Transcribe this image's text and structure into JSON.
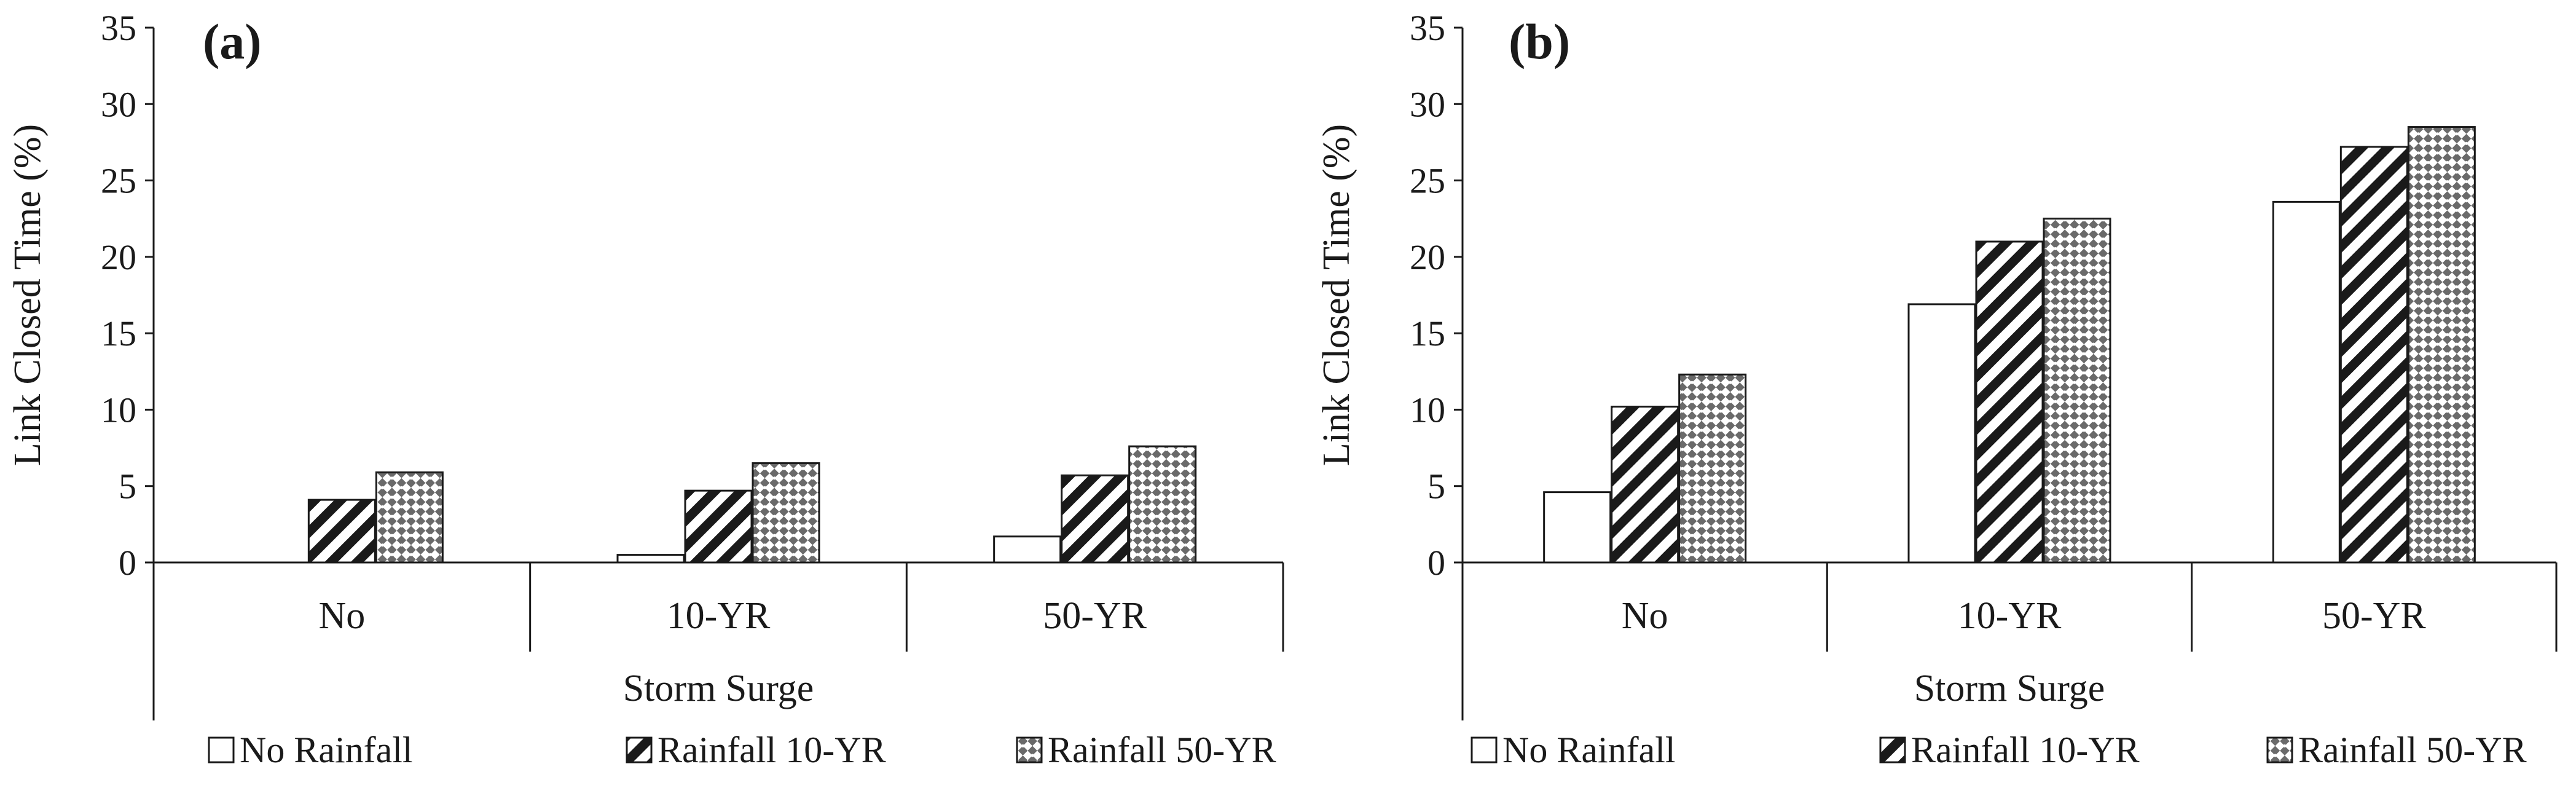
{
  "chart_data": [
    {
      "type": "bar",
      "panel_label": "(a)",
      "categories": [
        "No",
        "10-YR",
        "50-YR"
      ],
      "series": [
        {
          "name": "No Rainfall",
          "pattern": "blank",
          "values": [
            0,
            0.5,
            1.7
          ]
        },
        {
          "name": "Rainfall 10-YR",
          "pattern": "stripes",
          "values": [
            4.1,
            4.7,
            5.7
          ]
        },
        {
          "name": "Rainfall 50-YR",
          "pattern": "checker",
          "values": [
            5.9,
            6.5,
            7.6
          ]
        }
      ],
      "ylabel": "Link Closed Time (%)",
      "xlabel": "Storm Surge",
      "ylim": [
        0,
        35
      ],
      "yticks": [
        "0",
        "5",
        "10",
        "15",
        "20",
        "25",
        "30",
        "35"
      ],
      "grid": false,
      "legend_position": "bottom"
    },
    {
      "type": "bar",
      "panel_label": "(b)",
      "categories": [
        "No",
        "10-YR",
        "50-YR"
      ],
      "series": [
        {
          "name": "No Rainfall",
          "pattern": "blank",
          "values": [
            4.6,
            16.9,
            23.6
          ]
        },
        {
          "name": "Rainfall 10-YR",
          "pattern": "stripes",
          "values": [
            10.2,
            21.0,
            27.2
          ]
        },
        {
          "name": "Rainfall 50-YR",
          "pattern": "checker",
          "values": [
            12.3,
            22.5,
            28.5
          ]
        }
      ],
      "ylabel": "Link Closed Time (%)",
      "xlabel": "Storm Surge",
      "ylim": [
        0,
        35
      ],
      "yticks": [
        "0",
        "5",
        "10",
        "15",
        "20",
        "25",
        "30",
        "35"
      ],
      "grid": false,
      "legend_position": "bottom"
    }
  ],
  "colors": {
    "ink": "#1a1a1a",
    "background": "#ffffff"
  }
}
